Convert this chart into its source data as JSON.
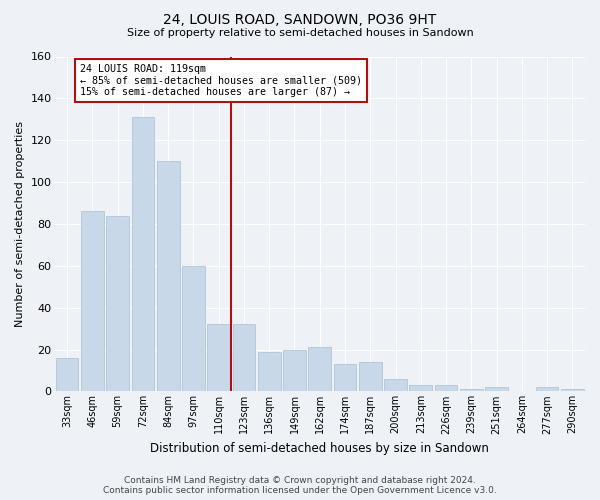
{
  "title": "24, LOUIS ROAD, SANDOWN, PO36 9HT",
  "subtitle": "Size of property relative to semi-detached houses in Sandown",
  "xlabel": "Distribution of semi-detached houses by size in Sandown",
  "ylabel": "Number of semi-detached properties",
  "bar_labels": [
    "33sqm",
    "46sqm",
    "59sqm",
    "72sqm",
    "84sqm",
    "97sqm",
    "110sqm",
    "123sqm",
    "136sqm",
    "149sqm",
    "162sqm",
    "174sqm",
    "187sqm",
    "200sqm",
    "213sqm",
    "226sqm",
    "239sqm",
    "251sqm",
    "264sqm",
    "277sqm",
    "290sqm"
  ],
  "bar_values": [
    16,
    86,
    84,
    131,
    110,
    60,
    32,
    32,
    19,
    20,
    21,
    13,
    14,
    6,
    3,
    3,
    1,
    2,
    0,
    2,
    1
  ],
  "bar_color": "#c8d8e8",
  "bar_edge_color": "#a8bfd0",
  "vline_color": "#aa1111",
  "annotation_label": "24 LOUIS ROAD: 119sqm",
  "annotation_smaller": "← 85% of semi-detached houses are smaller (509)",
  "annotation_larger": "15% of semi-detached houses are larger (87) →",
  "ylim": [
    0,
    160
  ],
  "yticks": [
    0,
    20,
    40,
    60,
    80,
    100,
    120,
    140,
    160
  ],
  "background_color": "#eef2f7",
  "grid_color": "#ffffff",
  "footer1": "Contains HM Land Registry data © Crown copyright and database right 2024.",
  "footer2": "Contains public sector information licensed under the Open Government Licence v3.0."
}
